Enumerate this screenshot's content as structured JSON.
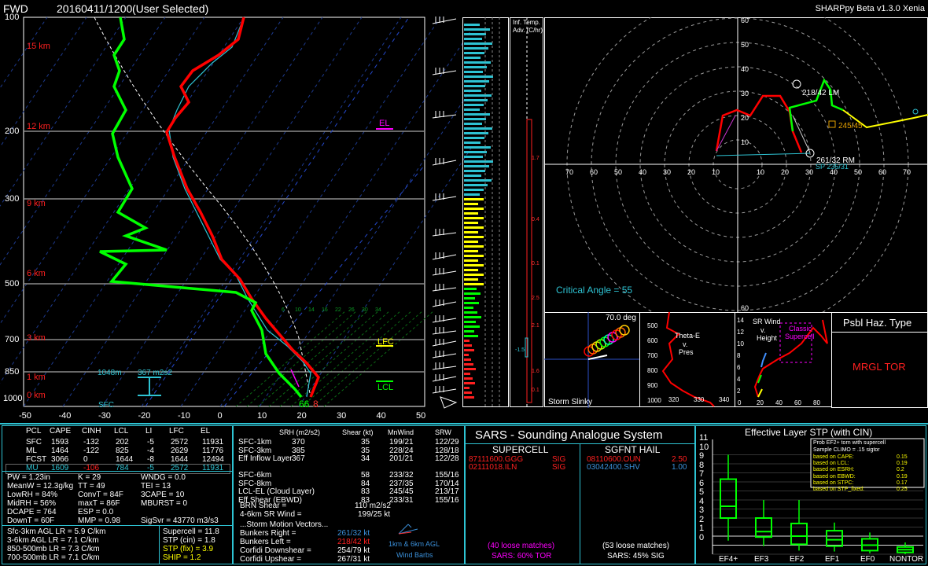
{
  "header": {
    "station": "FWD",
    "datetime": "20160411/1200",
    "selection": "(User Selected)",
    "app_version": "SHARPpy Beta v1.3.0 Xenia"
  },
  "skewt": {
    "pressure_labels": [
      "100",
      "200",
      "300",
      "500",
      "700",
      "850",
      "1000"
    ],
    "height_labels": [
      "15 km",
      "12 km",
      "9 km",
      "6 km",
      "3 km",
      "1 km",
      "0 km"
    ],
    "temp_axis": [
      "-50",
      "-40",
      "-30",
      "-20",
      "-10",
      "0",
      "10",
      "20",
      "30",
      "40",
      "50"
    ],
    "el_label": "EL",
    "lfc_label": "LFC",
    "lcl_label": "LCL",
    "sfc_label": "SFC",
    "eil_bottom": "1048m",
    "eil_srh": "367 m2s2",
    "sfc_t": "66",
    "sfc_td": "8",
    "mix_ratios": [
      "6",
      "10",
      "14",
      "16",
      "22",
      "26",
      "30",
      "34"
    ]
  },
  "inferred_temp": {
    "title_l1": "Inf. Temp.",
    "title_l2": "Adv. (C/hr)",
    "value_labels": [
      "1.7",
      "0.4",
      "0.1",
      "2.5",
      "2.1",
      "1.6",
      "0.1"
    ],
    "neg_label": "-1.5"
  },
  "hodograph": {
    "y_ticks": [
      "60",
      "50",
      "40",
      "30",
      "20",
      "10"
    ],
    "x_ticks_left": [
      "70",
      "60",
      "50",
      "40",
      "30",
      "20",
      "10"
    ],
    "x_ticks_right": [
      "10",
      "20",
      "30",
      "40",
      "50",
      "60",
      "70"
    ],
    "lm_label": "218/42 LM",
    "rm_label": "261/32 RM",
    "mean_label": "245/45",
    "sp_label": "SP 235/31",
    "critical_angle": "Critical Angle = 55"
  },
  "storm_slinky": {
    "angle": "70.0 deg",
    "label": "Storm Slinky"
  },
  "theta_e": {
    "label_l1": "Theta-E",
    "label_l2": "v.",
    "label_l3": "Pres",
    "y_ticks": [
      "500",
      "600",
      "700",
      "800",
      "900",
      "1000"
    ],
    "x_ticks": [
      "320",
      "330",
      "340"
    ]
  },
  "sr_wind": {
    "label_l1": "SR Wind",
    "label_l2": "v.",
    "label_l3": "Height",
    "classic": "Classic",
    "supercell": "Supercell",
    "y_ticks": [
      "14",
      "12",
      "10",
      "8",
      "6",
      "4",
      "2"
    ],
    "x_ticks": [
      "0",
      "20",
      "40",
      "60",
      "80"
    ]
  },
  "hazard": {
    "title": "Psbl Haz. Type",
    "value": "MRGL TOR"
  },
  "parcels": {
    "headers": [
      "PCL",
      "CAPE",
      "CINH",
      "LCL",
      "LI",
      "LFC",
      "EL"
    ],
    "rows": [
      [
        "SFC",
        "1593",
        "-132",
        "202",
        "-5",
        "2572",
        "11931"
      ],
      [
        "ML",
        "1464",
        "-122",
        "825",
        "-4",
        "2629",
        "11776"
      ],
      [
        "FCST",
        "3066",
        "0",
        "1644",
        "-8",
        "1644",
        "12494"
      ],
      [
        "MU",
        "1609",
        "-106",
        "784",
        "-5",
        "2572",
        "11931"
      ]
    ]
  },
  "indices": {
    "col1": [
      "PW = 1.23in",
      "MeanW = 12.3g/kg",
      "LowRH = 84%",
      "MidRH = 56%",
      "DCAPE = 764",
      "DownT = 60F"
    ],
    "col2": [
      "K = 29",
      "TT = 49",
      "ConvT = 84F",
      "maxT = 86F",
      "ESP = 0.0",
      "MMP = 0.98"
    ],
    "col3": [
      "WNDG = 0.0",
      "TEI = 13",
      "3CAPE = 10",
      "MBURST = 0",
      "",
      ""
    ],
    "sigsvr": "SigSvr = 43770 m3/s3"
  },
  "lapse_rates": [
    "Sfc-3km AGL LR = 5.9 C/km",
    "3-6km AGL LR = 7.1 C/km",
    "850-500mb LR = 7.3 C/km",
    "700-500mb LR = 7.1 C/km"
  ],
  "composites": [
    "Supercell = 11.8",
    "STP (cin) = 1.8",
    "STP (fix) = 3.9",
    "SHIP = 1.2"
  ],
  "kinematics": {
    "headers": [
      "SRH (m2/s2)",
      "Shear (kt)",
      "MnWind",
      "SRW"
    ],
    "rows": [
      [
        "SFC-1km",
        "370",
        "35",
        "199/21",
        "122/29"
      ],
      [
        "SFC-3km",
        "385",
        "35",
        "228/24",
        "128/18"
      ],
      [
        "Eff Inflow Layer",
        "367",
        "34",
        "201/21",
        "122/28"
      ],
      [
        "",
        "",
        "",
        "",
        ""
      ],
      [
        "SFC-6km",
        "",
        "58",
        "233/32",
        "155/16"
      ],
      [
        "SFC-8km",
        "",
        "84",
        "237/35",
        "170/14"
      ],
      [
        "LCL-EL (Cloud Layer)",
        "",
        "83",
        "245/45",
        "213/17"
      ],
      [
        "Eff Shear (EBWD)",
        "",
        "83",
        "233/31",
        "155/16"
      ]
    ],
    "brn_label": "BRN Shear =",
    "brn_value": "110 m2/s2",
    "srw_label": "4-6km SR Wind =",
    "srw_value": "199/25 kt",
    "vectors_title": "...Storm Motion Vectors...",
    "vectors": [
      [
        "Bunkers Right =",
        "261/32 kt"
      ],
      [
        "Bunkers Left =",
        "218/42 kt"
      ],
      [
        "Corfidi Downshear =",
        "254/79 kt"
      ],
      [
        "Corfidi Upshear =",
        "267/31 kt"
      ]
    ],
    "barbs_l1": "1km & 6km AGL",
    "barbs_l2": "Wind Barbs"
  },
  "sars": {
    "title": "SARS - Sounding Analogue System",
    "supercell_head": "SUPERCELL",
    "hail_head": "SGFNT HAIL",
    "supercell_matches": [
      [
        "87111600.GGG",
        "SIG"
      ],
      [
        "02111018.ILN",
        "SIG"
      ]
    ],
    "hail_matches": [
      [
        "08110600.OUN",
        "2.50"
      ],
      [
        "03042400.SHV",
        "1.00"
      ]
    ],
    "supercell_loose": "(40 loose matches)",
    "supercell_pct": "SARS: 60% TOR",
    "hail_loose": "(53 loose matches)",
    "hail_pct": "SARS: 45% SIG"
  },
  "stp": {
    "title": "Effective Layer STP (with CIN)",
    "y_ticks": [
      "11",
      "10",
      "9",
      "8",
      "7",
      "6",
      "5",
      "4",
      "3",
      "2",
      "1",
      "0"
    ],
    "categories": [
      "EF4+",
      "EF3",
      "EF2",
      "EF1",
      "EF0",
      "NONTOR"
    ],
    "legend_title_l1": "Prob EF2+ torn with supercell",
    "legend_title_l2": "Sample CLIMO = .15 sigtor",
    "legend_rows": [
      [
        "based on CAPE:",
        "0.15"
      ],
      [
        "based on LCL:",
        "0.19"
      ],
      [
        "based on ESRH:",
        "0.2"
      ],
      [
        "based on EBWD:",
        "0.19"
      ],
      [
        "based on STPC:",
        "0.17"
      ],
      [
        "based on STP_fixed:",
        "0.25"
      ]
    ]
  },
  "colors": {
    "temp": "#ff0000",
    "dewp": "#00ff00",
    "accent_cyan": "#06b5cf",
    "yellow": "#ffff00",
    "magenta": "#ff00ff",
    "blue_sars": "#3a8fd8"
  }
}
